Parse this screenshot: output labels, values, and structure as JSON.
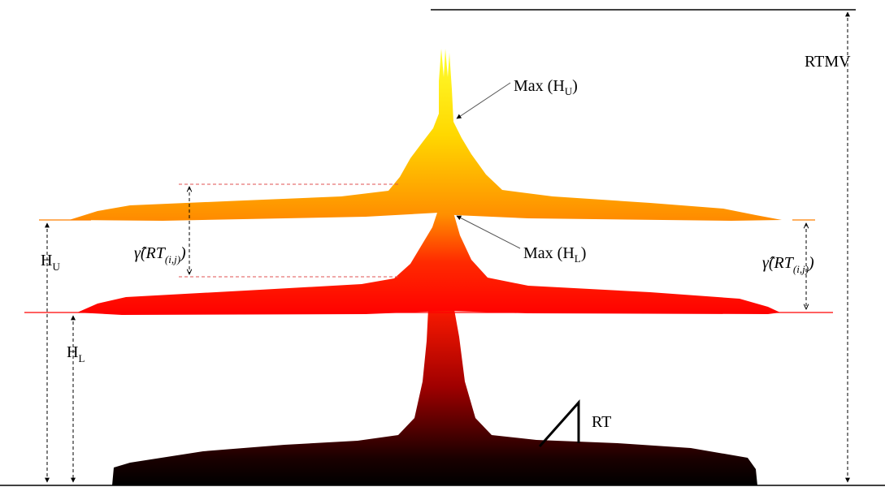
{
  "labels": {
    "rtmv": "RTMV",
    "max_hu_prefix": "Max (H",
    "max_hu_sub": "U",
    "max_hu_suffix": ")",
    "max_hl_prefix": "Max (H",
    "max_hl_sub": "L",
    "max_hl_suffix": ")",
    "hu_main": "H",
    "hu_sub": "U",
    "hl_main": "H",
    "hl_sub": "L",
    "rt": "RT",
    "gamma_left_main": "γ̂(RT",
    "gamma_left_sub": "(i,j)",
    "gamma_left_close": ")",
    "gamma_right_main": "γ̂(RT",
    "gamma_right_sub": "(i,j)",
    "gamma_right_close": ")"
  },
  "colors": {
    "ground": "#000000",
    "lower_threshold": "#ff0000",
    "upper_threshold": "#ff8000",
    "peak_top": "#ffff00",
    "dashed_red": "#e05050"
  }
}
